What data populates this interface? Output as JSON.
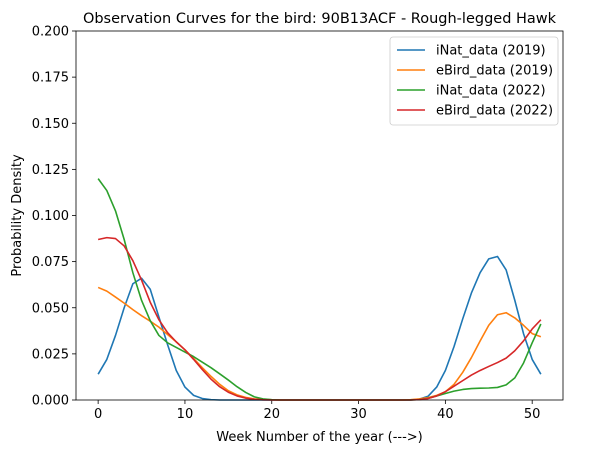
{
  "chart_data": {
    "type": "line",
    "title": "Observation Curves for the bird: 90B13ACF - Rough-legged Hawk",
    "xlabel": "Week Number of the year (--->)",
    "ylabel": "Probability Density",
    "xlim": [
      -2.55,
      53.55
    ],
    "ylim": [
      0,
      0.2
    ],
    "xticks": [
      0,
      10,
      20,
      30,
      40,
      50
    ],
    "yticks": [
      0.0,
      0.025,
      0.05,
      0.075,
      0.1,
      0.125,
      0.15,
      0.175,
      0.2
    ],
    "ytick_labels": [
      "0.000",
      "0.025",
      "0.050",
      "0.075",
      "0.100",
      "0.125",
      "0.150",
      "0.175",
      "0.200"
    ],
    "legend_position": "top-right",
    "x": [
      0,
      1,
      2,
      3,
      4,
      5,
      6,
      7,
      8,
      9,
      10,
      11,
      12,
      13,
      14,
      15,
      16,
      17,
      18,
      19,
      20,
      21,
      22,
      23,
      24,
      25,
      26,
      27,
      28,
      29,
      30,
      31,
      32,
      33,
      34,
      35,
      36,
      37,
      38,
      39,
      40,
      41,
      42,
      43,
      44,
      45,
      46,
      47,
      48,
      49,
      50,
      51
    ],
    "series": [
      {
        "name": "iNat_data (2019)",
        "color": "#1f77b4",
        "values": [
          0.014,
          0.022,
          0.035,
          0.05,
          0.063,
          0.066,
          0.06,
          0.045,
          0.03,
          0.016,
          0.007,
          0.0025,
          0.0008,
          0.0002,
          0,
          0,
          0,
          0,
          0,
          0,
          0,
          0,
          0,
          0,
          0,
          0,
          0,
          0,
          0,
          0,
          0,
          0,
          0,
          0,
          0,
          0,
          0,
          0.0005,
          0.002,
          0.007,
          0.016,
          0.029,
          0.044,
          0.058,
          0.069,
          0.0765,
          0.0778,
          0.0705,
          0.054,
          0.036,
          0.022,
          0.014
        ]
      },
      {
        "name": "eBird_data (2019)",
        "color": "#ff7f0e",
        "values": [
          0.061,
          0.059,
          0.0558,
          0.0525,
          0.049,
          0.0457,
          0.0427,
          0.0395,
          0.0355,
          0.0315,
          0.0272,
          0.0225,
          0.0175,
          0.0128,
          0.0085,
          0.005,
          0.0028,
          0.0014,
          0.0006,
          0.0003,
          0.0001,
          0,
          0,
          0,
          0,
          0,
          0,
          0,
          0,
          0,
          0,
          0,
          0,
          0,
          0,
          0,
          0.0002,
          0.0006,
          0.0013,
          0.0025,
          0.0045,
          0.0085,
          0.015,
          0.023,
          0.032,
          0.0405,
          0.0462,
          0.0473,
          0.0445,
          0.0405,
          0.036,
          0.0343
        ]
      },
      {
        "name": "iNat_data (2022)",
        "color": "#2ca02c",
        "values": [
          0.12,
          0.1135,
          0.1025,
          0.087,
          0.069,
          0.054,
          0.043,
          0.035,
          0.031,
          0.0285,
          0.026,
          0.0235,
          0.0205,
          0.0175,
          0.0142,
          0.0108,
          0.0072,
          0.0041,
          0.0017,
          0.0006,
          0.0002,
          0,
          0,
          0,
          0,
          0,
          0,
          0,
          0,
          0,
          0,
          0,
          0,
          0,
          0,
          0,
          0,
          0.0002,
          0.0009,
          0.0022,
          0.0035,
          0.0048,
          0.0057,
          0.0062,
          0.0064,
          0.0065,
          0.0068,
          0.0082,
          0.012,
          0.02,
          0.031,
          0.0412
        ]
      },
      {
        "name": "eBird_data (2022)",
        "color": "#d62728",
        "values": [
          0.087,
          0.088,
          0.0875,
          0.0835,
          0.0755,
          0.065,
          0.053,
          0.0435,
          0.0365,
          0.0315,
          0.0272,
          0.022,
          0.0165,
          0.0113,
          0.0072,
          0.0042,
          0.0022,
          0.001,
          0.0004,
          0.0001,
          0,
          0,
          0,
          0,
          0,
          0,
          0,
          0,
          0,
          0,
          0,
          0,
          0,
          0,
          0,
          0,
          0,
          0.0002,
          0.0008,
          0.0022,
          0.0045,
          0.0075,
          0.0105,
          0.0135,
          0.016,
          0.0182,
          0.0203,
          0.0227,
          0.0267,
          0.032,
          0.0385,
          0.0435
        ]
      }
    ]
  }
}
